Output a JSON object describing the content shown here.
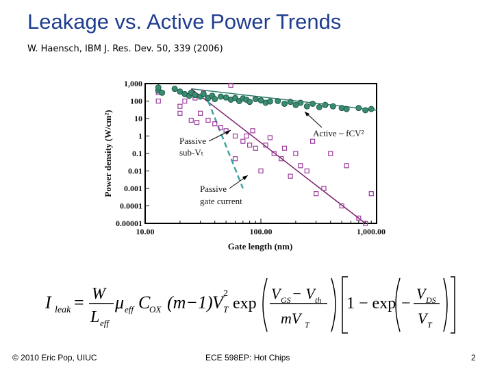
{
  "slide": {
    "title": "Leakage vs. Active Power Trends",
    "subtitle": "W. Haensch, IBM J. Res. Dev. 50, 339 (2006)",
    "footer_left": "© 2010 Eric Pop, UIUC",
    "footer_center": "ECE 598EP: Hot Chips",
    "footer_right": "2"
  },
  "colors": {
    "title": "#1f3d8f",
    "active": "#2e7d6b",
    "active_fill": "#3a8c73",
    "passive_marker": "#9b3a9b",
    "passive_line": "#7b1e6b",
    "gate_line": "#3aa3a0"
  },
  "chart_data": {
    "type": "scatter",
    "xscale": "log",
    "yscale": "log",
    "xlim": [
      10,
      1000
    ],
    "ylim": [
      1e-05,
      1000
    ],
    "xticklabels": [
      "10.00",
      "100.00",
      "1,000.00"
    ],
    "yticklabels": [
      "1,000",
      "100",
      "10",
      "1",
      "0.1",
      "0.01",
      "0.001",
      "0.0001",
      "0.00001"
    ],
    "yticklabel_display": [
      "1,000",
      "100",
      "10",
      "1",
      "0.1",
      "0.01",
      "0.001",
      "0.0001",
      "0.00001"
    ],
    "xlabel": "Gate length  (nm)",
    "ylabel": "Power density  (W/cm²)",
    "annotations": {
      "active": "Active ~ fCV²",
      "passive_sub_a": "Passive",
      "passive_sub_b": "sub-Vₜ",
      "passive_gate_a": "Passive",
      "passive_gate_b": "gate current"
    },
    "series": [
      {
        "name": "Active",
        "marker": "filled-circle",
        "points": [
          [
            13,
            400
          ],
          [
            13,
            600
          ],
          [
            14,
            300
          ],
          [
            18,
            500
          ],
          [
            20,
            350
          ],
          [
            22,
            250
          ],
          [
            24,
            200
          ],
          [
            25,
            300
          ],
          [
            27,
            220
          ],
          [
            30,
            180
          ],
          [
            32,
            250
          ],
          [
            35,
            150
          ],
          [
            38,
            200
          ],
          [
            40,
            130
          ],
          [
            45,
            180
          ],
          [
            50,
            160
          ],
          [
            55,
            120
          ],
          [
            60,
            150
          ],
          [
            65,
            100
          ],
          [
            70,
            140
          ],
          [
            75,
            120
          ],
          [
            80,
            90
          ],
          [
            90,
            130
          ],
          [
            100,
            110
          ],
          [
            110,
            80
          ],
          [
            120,
            95
          ],
          [
            140,
            100
          ],
          [
            160,
            70
          ],
          [
            180,
            90
          ],
          [
            200,
            60
          ],
          [
            220,
            80
          ],
          [
            250,
            50
          ],
          [
            280,
            70
          ],
          [
            320,
            45
          ],
          [
            360,
            60
          ],
          [
            420,
            50
          ],
          [
            500,
            40
          ],
          [
            550,
            35
          ],
          [
            700,
            40
          ],
          [
            800,
            30
          ],
          [
            900,
            35
          ]
        ],
        "trend": [
          [
            25,
            500
          ],
          [
            1000,
            30
          ]
        ]
      },
      {
        "name": "Passive sub-Vt",
        "marker": "open-square",
        "points": [
          [
            13,
            100
          ],
          [
            13,
            300
          ],
          [
            20,
            50
          ],
          [
            20,
            20
          ],
          [
            22,
            100
          ],
          [
            25,
            8
          ],
          [
            27,
            150
          ],
          [
            28,
            6
          ],
          [
            30,
            20
          ],
          [
            32,
            300
          ],
          [
            35,
            8
          ],
          [
            40,
            5
          ],
          [
            45,
            3
          ],
          [
            50,
            2
          ],
          [
            55,
            800
          ],
          [
            60,
            1
          ],
          [
            60,
            0.05
          ],
          [
            70,
            0.5
          ],
          [
            75,
            1
          ],
          [
            80,
            0.3
          ],
          [
            85,
            2
          ],
          [
            90,
            0.2
          ],
          [
            100,
            0.01
          ],
          [
            110,
            0.3
          ],
          [
            120,
            0.8
          ],
          [
            130,
            0.1
          ],
          [
            150,
            0.05
          ],
          [
            160,
            0.2
          ],
          [
            180,
            0.005
          ],
          [
            200,
            0.1
          ],
          [
            220,
            0.02
          ],
          [
            250,
            0.01
          ],
          [
            280,
            0.5
          ],
          [
            300,
            0.0005
          ],
          [
            350,
            0.001
          ],
          [
            400,
            0.1
          ],
          [
            500,
            0.0001
          ],
          [
            550,
            0.02
          ],
          [
            700,
            2e-05
          ],
          [
            800,
            1e-05
          ],
          [
            900,
            0.0005
          ]
        ],
        "trend": [
          [
            25,
            500
          ],
          [
            800,
            1e-05
          ]
        ]
      },
      {
        "name": "Passive gate current",
        "marker": "dashed-line",
        "trend": [
          [
            35,
            100
          ],
          [
            70,
            0.001
          ]
        ]
      }
    ]
  },
  "equation": {
    "lhs": "I",
    "lhs_sub": "leak",
    "eq": "=",
    "frac1_num": "W",
    "frac1_den": "L",
    "frac1_den_sub": "eff",
    "mu": "μ",
    "mu_sub": "eff",
    "cox": "C",
    "cox_sub": "OX",
    "m_term": "(m−1)",
    "vt": "V",
    "vt_sub": "T",
    "vt_sup": "2",
    "exp1": "exp",
    "frac2_num": "V",
    "frac2_num_sub1": "GS",
    "frac2_num_mid": " − V",
    "frac2_num_sub2": "th",
    "frac2_den": "mV",
    "frac2_den_sub": "T",
    "one_minus": "1 − exp",
    "neg": "−",
    "frac3_num": "V",
    "frac3_num_sub": "DS",
    "frac3_den": "V",
    "frac3_den_sub": "T"
  }
}
